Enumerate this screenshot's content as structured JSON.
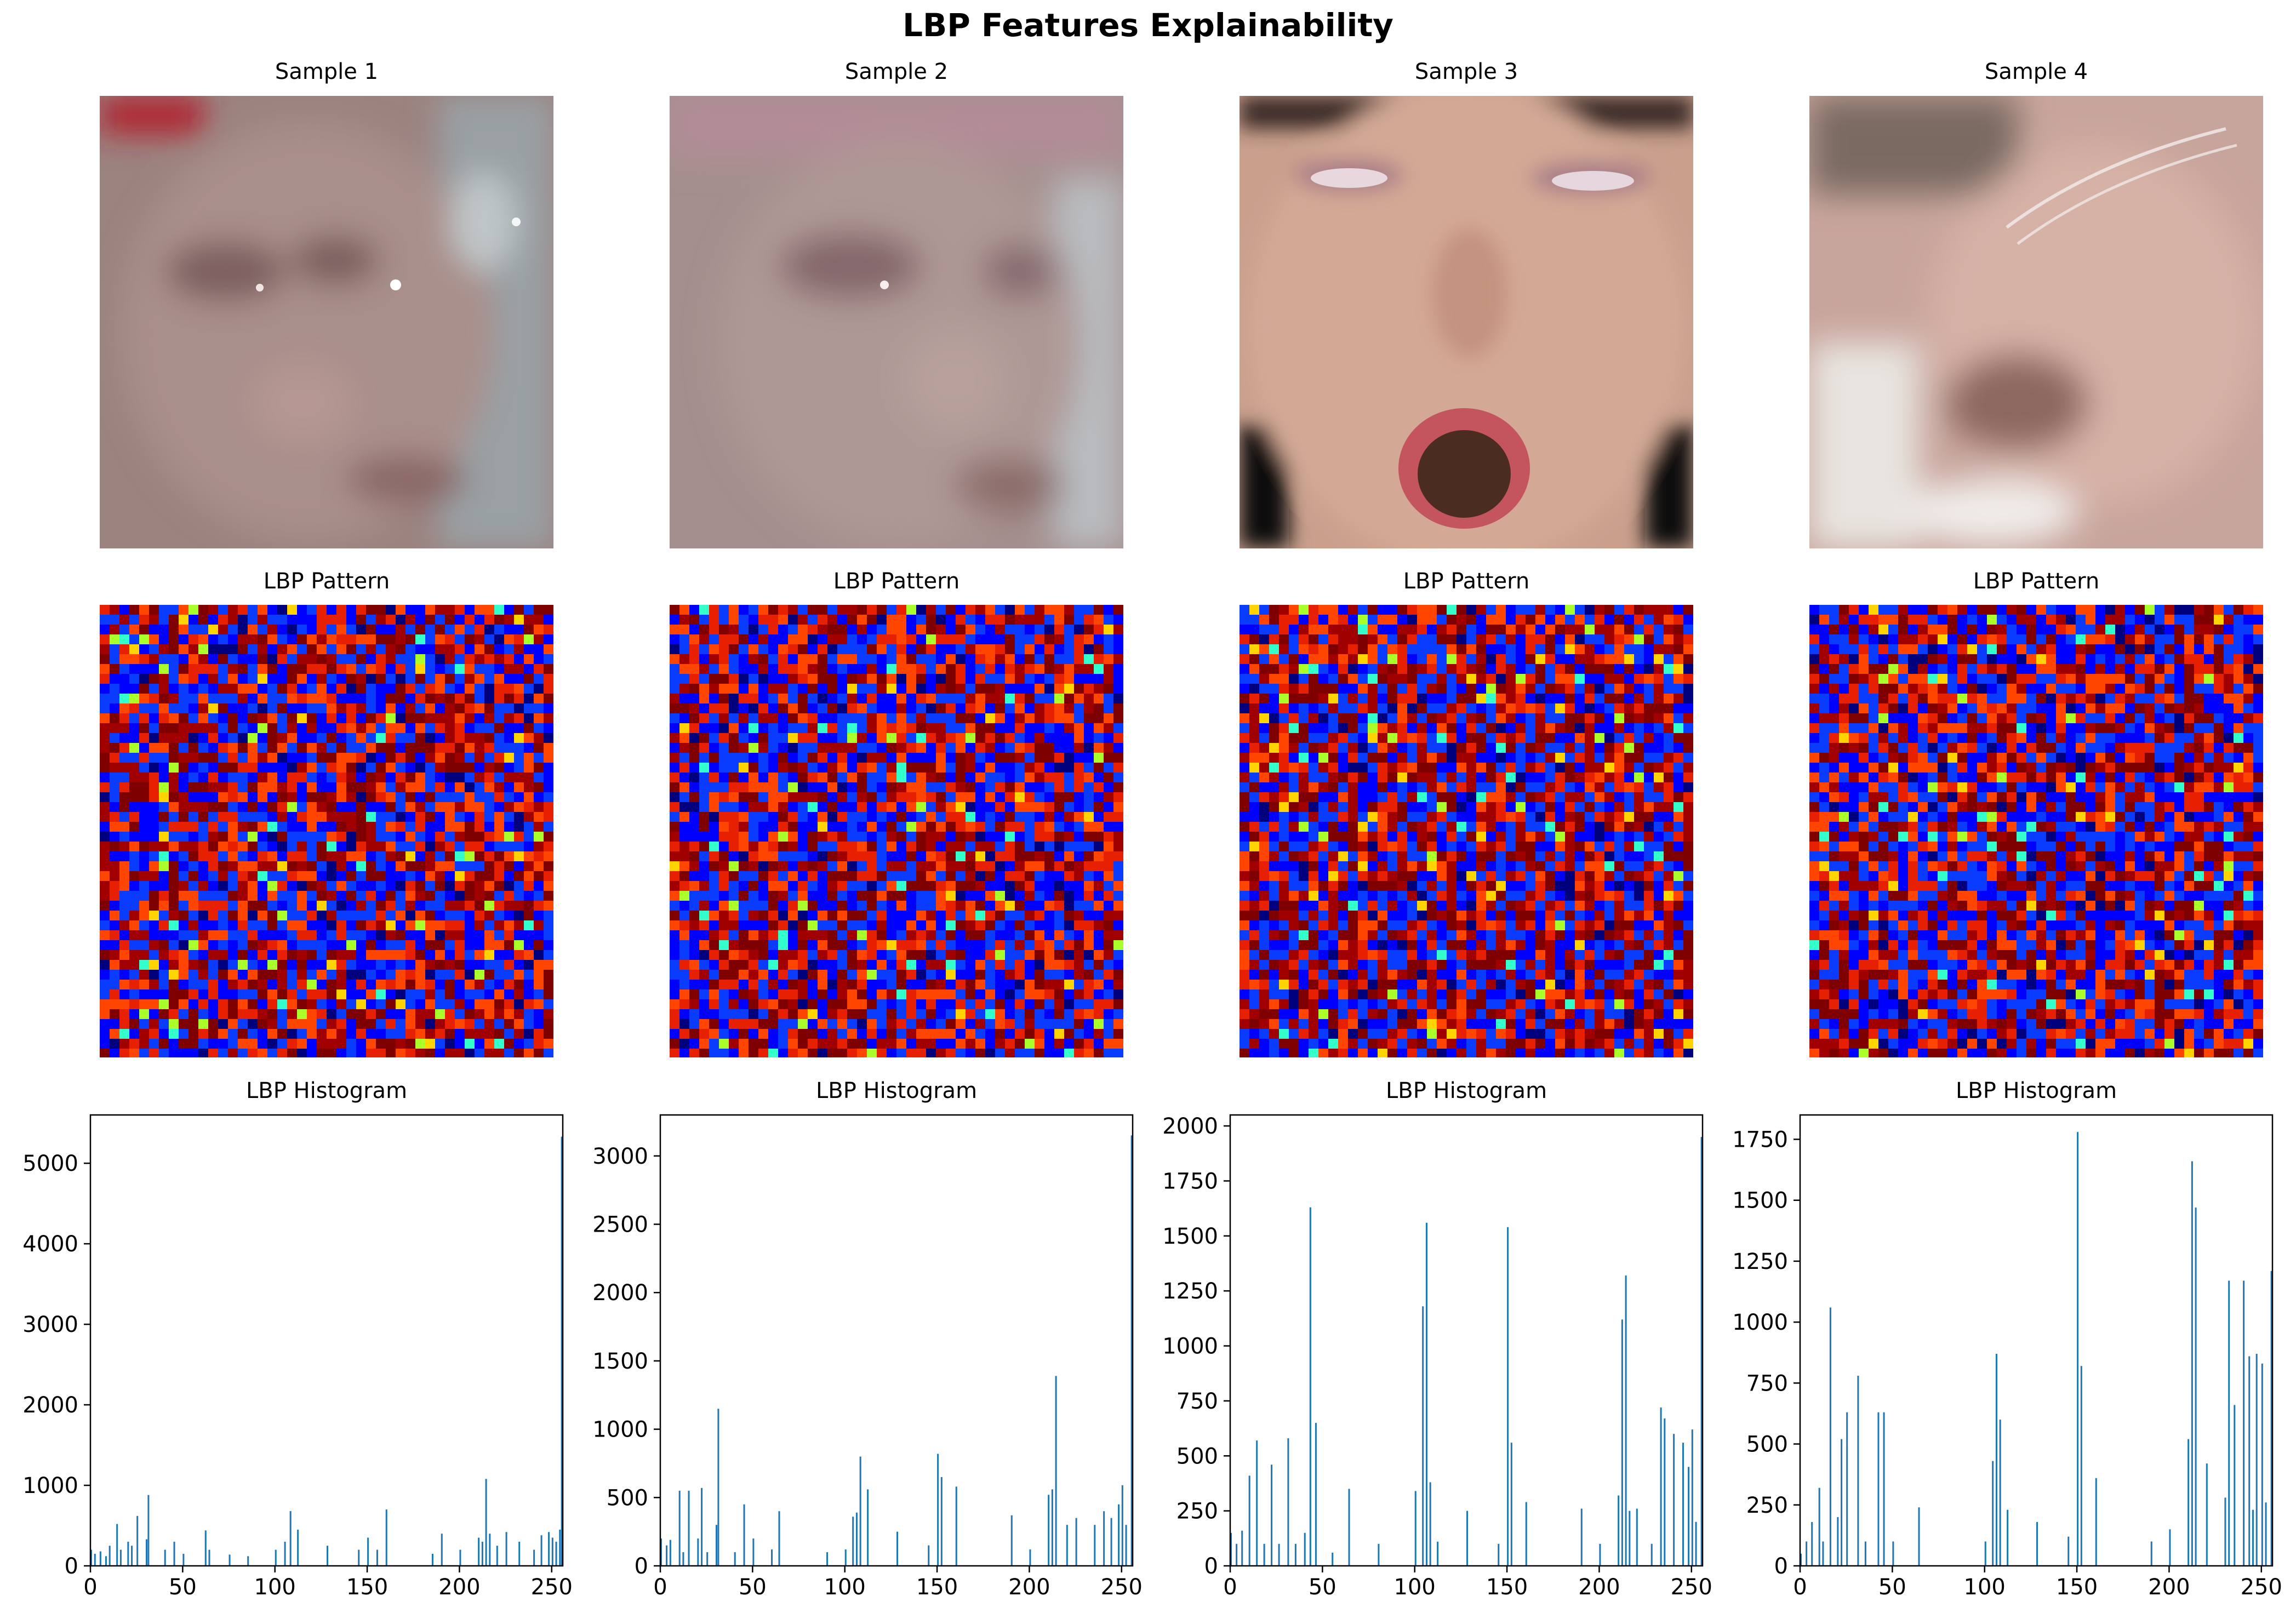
{
  "figure": {
    "title": "LBP Features Explainability"
  },
  "colors": {
    "bar": "#1f77b4"
  },
  "samples": [
    {
      "title": "Sample 1",
      "pattern_title": "LBP Pattern",
      "histogram_title": "LBP Histogram"
    },
    {
      "title": "Sample 2",
      "pattern_title": "LBP Pattern",
      "histogram_title": "LBP Histogram"
    },
    {
      "title": "Sample 3",
      "pattern_title": "LBP Pattern",
      "histogram_title": "LBP Histogram"
    },
    {
      "title": "Sample 4",
      "pattern_title": "LBP Pattern",
      "histogram_title": "LBP Histogram"
    }
  ],
  "chart_data": [
    {
      "type": "bar",
      "title": "LBP Histogram",
      "xlim": [
        0,
        256
      ],
      "ylim": [
        0,
        5600
      ],
      "xticks": [
        0,
        50,
        100,
        150,
        200,
        250
      ],
      "yticks": [
        0,
        1000,
        2000,
        3000,
        4000,
        5000
      ],
      "x": [
        0,
        2,
        5,
        8,
        10,
        14,
        16,
        20,
        22,
        25,
        30,
        31,
        40,
        45,
        50,
        62,
        64,
        75,
        85,
        100,
        105,
        108,
        112,
        128,
        145,
        150,
        155,
        160,
        185,
        190,
        200,
        210,
        212,
        214,
        216,
        220,
        225,
        232,
        240,
        244,
        248,
        250,
        252,
        254,
        255
      ],
      "values": [
        200,
        150,
        180,
        120,
        250,
        520,
        200,
        300,
        250,
        620,
        330,
        880,
        200,
        300,
        150,
        440,
        200,
        140,
        120,
        200,
        300,
        680,
        450,
        250,
        200,
        350,
        200,
        700,
        150,
        400,
        200,
        350,
        300,
        1080,
        400,
        250,
        420,
        300,
        200,
        380,
        420,
        350,
        300,
        450,
        5330
      ]
    },
    {
      "type": "bar",
      "title": "LBP Histogram",
      "xlim": [
        0,
        256
      ],
      "ylim": [
        0,
        3300
      ],
      "xticks": [
        0,
        50,
        100,
        150,
        200,
        250
      ],
      "yticks": [
        0,
        500,
        1000,
        1500,
        2000,
        2500,
        3000
      ],
      "x": [
        0,
        3,
        5,
        10,
        12,
        15,
        20,
        22,
        25,
        30,
        31,
        40,
        45,
        50,
        60,
        64,
        90,
        100,
        104,
        106,
        108,
        112,
        128,
        145,
        150,
        152,
        160,
        190,
        200,
        210,
        212,
        214,
        220,
        225,
        235,
        240,
        244,
        248,
        250,
        252,
        255
      ],
      "values": [
        200,
        150,
        190,
        550,
        100,
        550,
        200,
        570,
        100,
        300,
        1150,
        100,
        450,
        200,
        120,
        400,
        100,
        120,
        360,
        390,
        800,
        560,
        250,
        150,
        820,
        650,
        580,
        370,
        120,
        520,
        560,
        1390,
        300,
        350,
        300,
        400,
        350,
        450,
        590,
        300,
        3150
      ]
    },
    {
      "type": "bar",
      "title": "LBP Histogram",
      "xlim": [
        0,
        256
      ],
      "ylim": [
        0,
        2050
      ],
      "xticks": [
        0,
        50,
        100,
        150,
        200,
        250
      ],
      "yticks": [
        0,
        250,
        500,
        750,
        1000,
        1250,
        1500,
        1750,
        2000
      ],
      "x": [
        0,
        3,
        6,
        10,
        14,
        18,
        22,
        26,
        31,
        35,
        40,
        43,
        46,
        55,
        64,
        80,
        100,
        104,
        106,
        108,
        112,
        128,
        145,
        150,
        152,
        160,
        190,
        200,
        210,
        212,
        214,
        216,
        220,
        228,
        233,
        235,
        240,
        245,
        248,
        250,
        252,
        255
      ],
      "values": [
        150,
        100,
        160,
        410,
        570,
        100,
        460,
        100,
        580,
        100,
        150,
        1630,
        650,
        60,
        350,
        100,
        340,
        1180,
        1560,
        380,
        110,
        250,
        100,
        1540,
        560,
        290,
        260,
        100,
        320,
        1120,
        1320,
        250,
        260,
        100,
        720,
        670,
        600,
        560,
        450,
        620,
        200,
        1950
      ]
    },
    {
      "type": "bar",
      "title": "LBP Histogram",
      "xlim": [
        0,
        256
      ],
      "ylim": [
        0,
        1850
      ],
      "xticks": [
        0,
        50,
        100,
        150,
        200,
        250
      ],
      "yticks": [
        0,
        250,
        500,
        750,
        1000,
        1250,
        1500,
        1750
      ],
      "x": [
        0,
        3,
        6,
        10,
        12,
        16,
        20,
        22,
        25,
        31,
        35,
        42,
        45,
        50,
        64,
        100,
        104,
        106,
        108,
        112,
        128,
        145,
        150,
        152,
        160,
        190,
        200,
        210,
        212,
        214,
        220,
        230,
        232,
        235,
        240,
        243,
        245,
        247,
        250,
        252,
        255
      ],
      "values": [
        50,
        100,
        180,
        320,
        100,
        1060,
        200,
        520,
        630,
        780,
        100,
        630,
        630,
        100,
        240,
        100,
        430,
        870,
        600,
        230,
        180,
        120,
        1780,
        820,
        360,
        100,
        150,
        520,
        1660,
        1470,
        420,
        280,
        1170,
        660,
        1170,
        860,
        230,
        870,
        830,
        260,
        1210
      ]
    }
  ]
}
